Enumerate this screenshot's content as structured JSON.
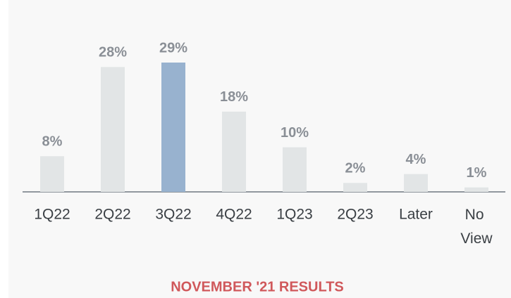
{
  "chart_data": {
    "type": "bar",
    "title": "NOVEMBER '21 RESULTS",
    "categories": [
      "1Q22",
      "2Q22",
      "3Q22",
      "4Q22",
      "1Q23",
      "2Q23",
      "Later",
      "No View"
    ],
    "values": [
      8,
      28,
      29,
      18,
      10,
      2,
      4,
      1
    ],
    "value_labels": [
      "8%",
      "28%",
      "29%",
      "18%",
      "10%",
      "2%",
      "4%",
      "1%"
    ],
    "colors": [
      "#e2e5e6",
      "#e2e5e6",
      "#98b2cf",
      "#e2e5e6",
      "#e2e5e6",
      "#e2e5e6",
      "#e2e5e6",
      "#e2e5e6"
    ],
    "title_color": "#d0585b"
  }
}
